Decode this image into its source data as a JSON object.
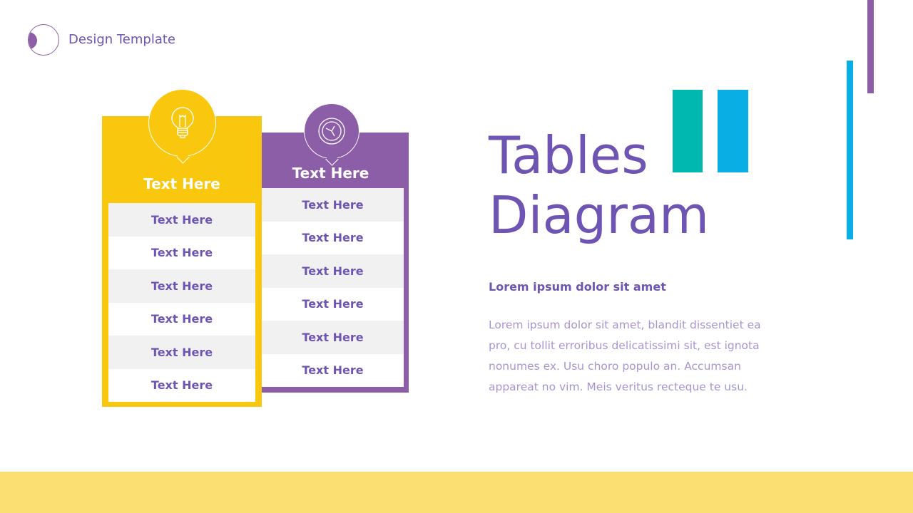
{
  "header": {
    "brand": "Design Template"
  },
  "table_yellow": {
    "title": "Text Here",
    "icon": "lightbulb-icon",
    "color": "#f9c80e",
    "rows": [
      "Text Here",
      "Text Here",
      "Text Here",
      "Text Here",
      "Text Here",
      "Text Here"
    ]
  },
  "table_purple": {
    "title": "Text Here",
    "icon": "clock-icon",
    "color": "#8c5ea8",
    "rows": [
      "Text Here",
      "Text Here",
      "Text Here",
      "Text Here",
      "Text Here",
      "Text Here"
    ]
  },
  "main": {
    "title_line1": "Tables",
    "title_line2": "Diagram",
    "subtitle": "Lorem ipsum dolor sit amet",
    "body": "Lorem ipsum dolor sit amet, blandit dissentiet ea pro, cu tollit erroribus delicatissimi sit, est ignota nonumes ex. Usu choro populo an. Accumsan appareat no vim. Meis veritus recteque te usu."
  },
  "colors": {
    "teal": "#00b8b0",
    "blue": "#08aee4",
    "purple": "#8c5ea8",
    "yellow": "#f9c80e",
    "footer": "#fcdf72"
  }
}
